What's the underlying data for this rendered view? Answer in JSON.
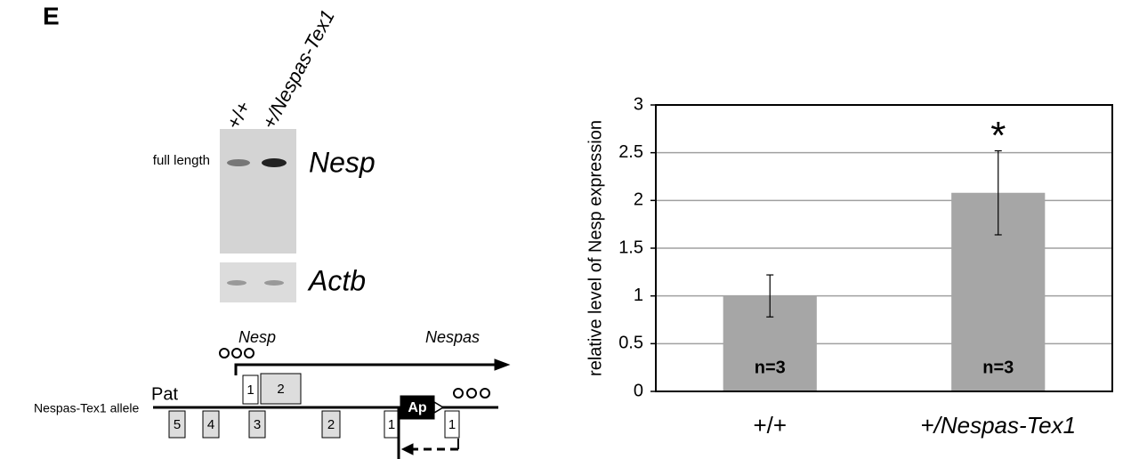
{
  "panel_label": "E",
  "blot": {
    "lanes": [
      "+/+",
      "+/Nespas-Tex1"
    ],
    "band_label": "full length",
    "genes": [
      "Nesp",
      "Actb"
    ]
  },
  "diagram": {
    "allele_label": "Nespas-Tex1 allele",
    "parent": "Pat",
    "transcripts": [
      "Nesp",
      "Nespas"
    ],
    "upper_exons": [
      "1",
      "2"
    ],
    "lower_exons": [
      "5",
      "4",
      "3",
      "2",
      "1",
      "1"
    ],
    "promoter": "Ap"
  },
  "chart_data": {
    "type": "bar",
    "ylabel": "relative level of Nesp expression",
    "categories": [
      "+/+",
      "+/Nespas-Tex1"
    ],
    "values": [
      1.0,
      2.08
    ],
    "errors": [
      0.22,
      0.44
    ],
    "bar_labels": [
      "n=3",
      "n=3"
    ],
    "annotation": "*",
    "color": "#a6a6a6",
    "ylim": [
      0,
      3
    ],
    "yticks": [
      0,
      0.5,
      1,
      1.5,
      2,
      2.5,
      3
    ],
    "grid": true
  }
}
